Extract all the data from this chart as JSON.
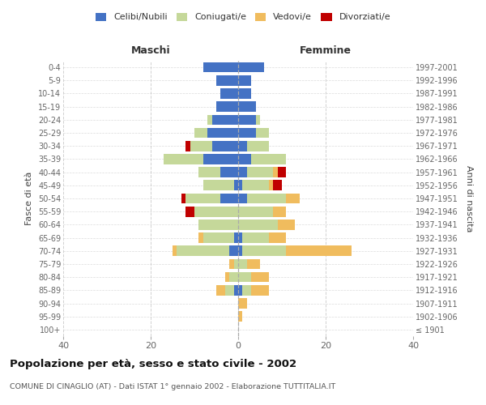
{
  "age_groups": [
    "100+",
    "95-99",
    "90-94",
    "85-89",
    "80-84",
    "75-79",
    "70-74",
    "65-69",
    "60-64",
    "55-59",
    "50-54",
    "45-49",
    "40-44",
    "35-39",
    "30-34",
    "25-29",
    "20-24",
    "15-19",
    "10-14",
    "5-9",
    "0-4"
  ],
  "birth_years": [
    "≤ 1901",
    "1902-1906",
    "1907-1911",
    "1912-1916",
    "1917-1921",
    "1922-1926",
    "1927-1931",
    "1932-1936",
    "1937-1941",
    "1942-1946",
    "1947-1951",
    "1952-1956",
    "1957-1961",
    "1962-1966",
    "1967-1971",
    "1972-1976",
    "1977-1981",
    "1982-1986",
    "1987-1991",
    "1992-1996",
    "1997-2001"
  ],
  "maschi": {
    "celibi": [
      0,
      0,
      0,
      1,
      0,
      0,
      2,
      1,
      0,
      0,
      4,
      1,
      4,
      8,
      6,
      7,
      6,
      5,
      4,
      5,
      8
    ],
    "coniugati": [
      0,
      0,
      0,
      2,
      2,
      1,
      12,
      7,
      9,
      10,
      8,
      7,
      5,
      9,
      5,
      3,
      1,
      0,
      0,
      0,
      0
    ],
    "vedovi": [
      0,
      0,
      0,
      2,
      1,
      1,
      1,
      1,
      0,
      0,
      0,
      0,
      0,
      0,
      0,
      0,
      0,
      0,
      0,
      0,
      0
    ],
    "divorziati": [
      0,
      0,
      0,
      0,
      0,
      0,
      0,
      0,
      0,
      2,
      1,
      0,
      0,
      0,
      1,
      0,
      0,
      0,
      0,
      0,
      0
    ]
  },
  "femmine": {
    "nubili": [
      0,
      0,
      0,
      1,
      0,
      0,
      1,
      1,
      0,
      0,
      2,
      1,
      2,
      3,
      2,
      4,
      4,
      4,
      3,
      3,
      6
    ],
    "coniugate": [
      0,
      0,
      0,
      2,
      3,
      2,
      10,
      6,
      9,
      8,
      9,
      6,
      6,
      8,
      5,
      3,
      1,
      0,
      0,
      0,
      0
    ],
    "vedove": [
      0,
      1,
      2,
      4,
      4,
      3,
      15,
      4,
      4,
      3,
      3,
      1,
      1,
      0,
      0,
      0,
      0,
      0,
      0,
      0,
      0
    ],
    "divorziate": [
      0,
      0,
      0,
      0,
      0,
      0,
      0,
      0,
      0,
      0,
      0,
      2,
      2,
      0,
      0,
      0,
      0,
      0,
      0,
      0,
      0
    ]
  },
  "color_celibi": "#4472c4",
  "color_coniugati": "#c5d89a",
  "color_vedovi": "#f0bc5e",
  "color_divorziati": "#c00000",
  "xlim": 40,
  "title": "Popolazione per età, sesso e stato civile - 2002",
  "subtitle": "COMUNE DI CINAGLIO (AT) - Dati ISTAT 1° gennaio 2002 - Elaborazione TUTTITALIA.IT",
  "ylabel_left": "Fasce di età",
  "ylabel_right": "Anni di nascita",
  "xlabel_maschi": "Maschi",
  "xlabel_femmine": "Femmine",
  "bg_color": "#ffffff",
  "grid_color": "#cccccc"
}
